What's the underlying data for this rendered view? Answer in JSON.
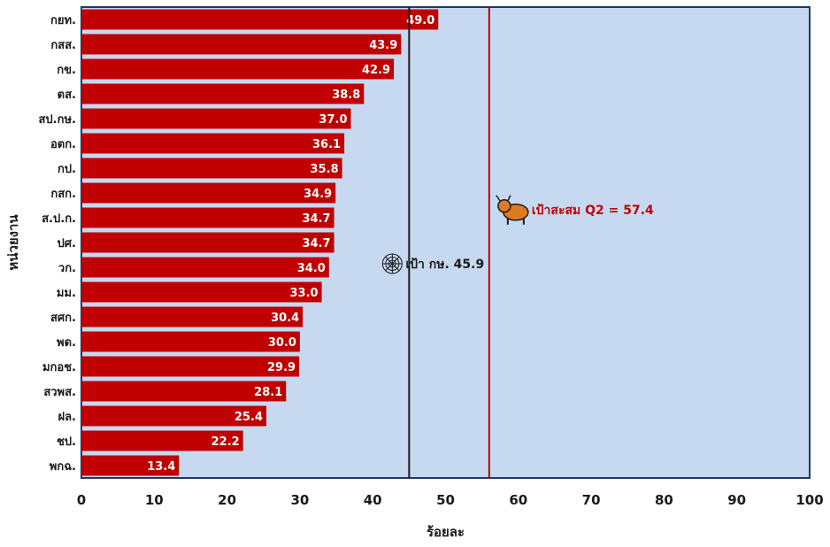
{
  "chart_data": {
    "type": "bar",
    "orientation": "horizontal",
    "title": "",
    "xlabel": "ร้อยละ",
    "ylabel": "หน่วยงาน",
    "xlim": [
      0,
      100
    ],
    "xticks": [
      "0",
      "10",
      "20",
      "30",
      "40",
      "50",
      "60",
      "70",
      "80",
      "90",
      "100"
    ],
    "categories": [
      "กยท.",
      "กสส.",
      "กข.",
      "ตส.",
      "สป.กษ.",
      "อตก.",
      "กป.",
      "กสก.",
      "ส.ป.ก.",
      "ปศ.",
      "วก.",
      "มม.",
      "สศก.",
      "พด.",
      "มกอช.",
      "สวพส.",
      "ฝล.",
      "ชป.",
      "พกฉ."
    ],
    "values": [
      49.0,
      43.9,
      42.9,
      38.8,
      37.0,
      36.1,
      35.8,
      34.9,
      34.7,
      34.7,
      34.0,
      33.0,
      30.4,
      30.0,
      29.9,
      28.1,
      25.4,
      22.2,
      13.4
    ],
    "value_labels": [
      "49.0",
      "43.9",
      "42.9",
      "38.8",
      "37.0",
      "36.1",
      "35.8",
      "34.9",
      "34.7",
      "34.7",
      "34.0",
      "33.0",
      "30.4",
      "30.0",
      "29.9",
      "28.1",
      "25.4",
      "22.2",
      "13.4"
    ],
    "reference_lines": [
      {
        "value": 45,
        "label": "เป้า กษ. 45.9",
        "color": "#1a1a1a",
        "icon": "spider-web-icon"
      },
      {
        "value": 56,
        "label": "เป้าสะสม Q2  = 57.4",
        "color": "#c00000",
        "icon": "ox-icon"
      }
    ],
    "colors": {
      "bar": "#c00000",
      "plot_bg": "#c6d9f1",
      "plot_border": "#1f3864"
    },
    "grid": false,
    "legend": "none"
  }
}
